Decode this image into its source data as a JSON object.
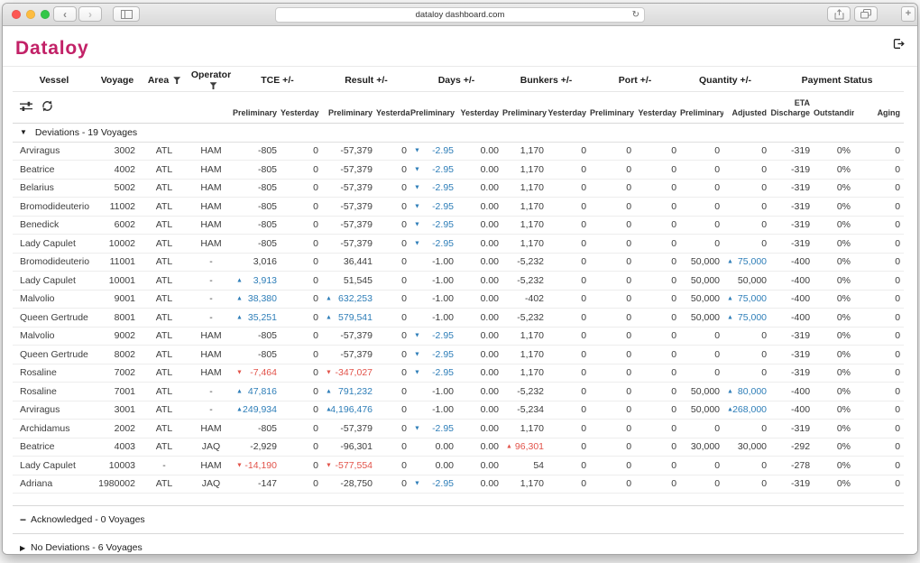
{
  "browser": {
    "url": "dataloy dashboard.com"
  },
  "app": {
    "logo": "Dataloy"
  },
  "colors": {
    "accent": "#c22167",
    "positive": "#2e7eb8",
    "negative": "#e2534a"
  },
  "table": {
    "groups": [
      {
        "label": "Vessel"
      },
      {
        "label": "Voyage"
      },
      {
        "label": "Area",
        "filter": true
      },
      {
        "label": "Operator",
        "filter": true
      },
      {
        "label": "TCE +/-"
      },
      {
        "label": "Result +/-"
      },
      {
        "label": "Days +/-"
      },
      {
        "label": "Bunkers +/-"
      },
      {
        "label": "Port +/-"
      },
      {
        "label": "Quantity +/-"
      },
      {
        "label": "Payment Status"
      }
    ],
    "subheaders": [
      "Preliminary",
      "Yesterday",
      "Preliminary",
      "Yesterday",
      "Preliminary",
      "Yesterday",
      "Preliminary",
      "Yesterday",
      "Preliminary",
      "Yesterday",
      "Preliminary",
      "Adjusted",
      "ETA Discharge",
      "Outstanding",
      "Aging"
    ],
    "sections": [
      {
        "icon": "▼",
        "label": "Deviations - 19 Voyages"
      },
      {
        "icon": "−",
        "label": "Acknowledged - 0 Voyages"
      },
      {
        "icon": "▶",
        "label": "No Deviations - 6 Voyages"
      }
    ],
    "rows": [
      [
        "Arviragus",
        "3002",
        "ATL",
        "HAM",
        "-805",
        "0",
        "-57,379",
        "0",
        {
          "v": "-2.95",
          "c": "blue",
          "i": "down"
        },
        "0.00",
        "1,170",
        "0",
        "0",
        "0",
        "0",
        "0",
        "-319",
        "0%",
        "0"
      ],
      [
        "Beatrice",
        "4002",
        "ATL",
        "HAM",
        "-805",
        "0",
        "-57,379",
        "0",
        {
          "v": "-2.95",
          "c": "blue",
          "i": "down"
        },
        "0.00",
        "1,170",
        "0",
        "0",
        "0",
        "0",
        "0",
        "-319",
        "0%",
        "0"
      ],
      [
        "Belarius",
        "5002",
        "ATL",
        "HAM",
        "-805",
        "0",
        "-57,379",
        "0",
        {
          "v": "-2.95",
          "c": "blue",
          "i": "down"
        },
        "0.00",
        "1,170",
        "0",
        "0",
        "0",
        "0",
        "0",
        "-319",
        "0%",
        "0"
      ],
      [
        "Bromodideuterio",
        "11002",
        "ATL",
        "HAM",
        "-805",
        "0",
        "-57,379",
        "0",
        {
          "v": "-2.95",
          "c": "blue",
          "i": "down"
        },
        "0.00",
        "1,170",
        "0",
        "0",
        "0",
        "0",
        "0",
        "-319",
        "0%",
        "0"
      ],
      [
        "Benedick",
        "6002",
        "ATL",
        "HAM",
        "-805",
        "0",
        "-57,379",
        "0",
        {
          "v": "-2.95",
          "c": "blue",
          "i": "down"
        },
        "0.00",
        "1,170",
        "0",
        "0",
        "0",
        "0",
        "0",
        "-319",
        "0%",
        "0"
      ],
      [
        "Lady Capulet",
        "10002",
        "ATL",
        "HAM",
        "-805",
        "0",
        "-57,379",
        "0",
        {
          "v": "-2.95",
          "c": "blue",
          "i": "down"
        },
        "0.00",
        "1,170",
        "0",
        "0",
        "0",
        "0",
        "0",
        "-319",
        "0%",
        "0"
      ],
      [
        "Bromodideuterio",
        "11001",
        "ATL",
        "-",
        "3,016",
        "0",
        "36,441",
        "0",
        "-1.00",
        "0.00",
        "-5,232",
        "0",
        "0",
        "0",
        "50,000",
        {
          "v": "75,000",
          "c": "blue",
          "i": "up"
        },
        "-400",
        "0%",
        "0"
      ],
      [
        "Lady Capulet",
        "10001",
        "ATL",
        "-",
        {
          "v": "3,913",
          "c": "blue",
          "i": "up"
        },
        "0",
        "51,545",
        "0",
        "-1.00",
        "0.00",
        "-5,232",
        "0",
        "0",
        "0",
        "50,000",
        "50,000",
        "-400",
        "0%",
        "0"
      ],
      [
        "Malvolio",
        "9001",
        "ATL",
        "-",
        {
          "v": "38,380",
          "c": "blue",
          "i": "up"
        },
        "0",
        {
          "v": "632,253",
          "c": "blue",
          "i": "up"
        },
        "0",
        "-1.00",
        "0.00",
        "-402",
        "0",
        "0",
        "0",
        "50,000",
        {
          "v": "75,000",
          "c": "blue",
          "i": "up"
        },
        "-400",
        "0%",
        "0"
      ],
      [
        "Queen Gertrude",
        "8001",
        "ATL",
        "-",
        {
          "v": "35,251",
          "c": "blue",
          "i": "up"
        },
        "0",
        {
          "v": "579,541",
          "c": "blue",
          "i": "up"
        },
        "0",
        "-1.00",
        "0.00",
        "-5,232",
        "0",
        "0",
        "0",
        "50,000",
        {
          "v": "75,000",
          "c": "blue",
          "i": "up"
        },
        "-400",
        "0%",
        "0"
      ],
      [
        "Malvolio",
        "9002",
        "ATL",
        "HAM",
        "-805",
        "0",
        "-57,379",
        "0",
        {
          "v": "-2.95",
          "c": "blue",
          "i": "down"
        },
        "0.00",
        "1,170",
        "0",
        "0",
        "0",
        "0",
        "0",
        "-319",
        "0%",
        "0"
      ],
      [
        "Queen Gertrude",
        "8002",
        "ATL",
        "HAM",
        "-805",
        "0",
        "-57,379",
        "0",
        {
          "v": "-2.95",
          "c": "blue",
          "i": "down"
        },
        "0.00",
        "1,170",
        "0",
        "0",
        "0",
        "0",
        "0",
        "-319",
        "0%",
        "0"
      ],
      [
        "Rosaline",
        "7002",
        "ATL",
        "HAM",
        {
          "v": "-7,464",
          "c": "red",
          "i": "down"
        },
        "0",
        {
          "v": "-347,027",
          "c": "red",
          "i": "down"
        },
        "0",
        {
          "v": "-2.95",
          "c": "blue",
          "i": "down"
        },
        "0.00",
        "1,170",
        "0",
        "0",
        "0",
        "0",
        "0",
        "-319",
        "0%",
        "0"
      ],
      [
        "Rosaline",
        "7001",
        "ATL",
        "-",
        {
          "v": "47,816",
          "c": "blue",
          "i": "up"
        },
        "0",
        {
          "v": "791,232",
          "c": "blue",
          "i": "up"
        },
        "0",
        "-1.00",
        "0.00",
        "-5,232",
        "0",
        "0",
        "0",
        "50,000",
        {
          "v": "80,000",
          "c": "blue",
          "i": "up"
        },
        "-400",
        "0%",
        "0"
      ],
      [
        "Arviragus",
        "3001",
        "ATL",
        "-",
        {
          "v": "249,934",
          "c": "blue",
          "i": "up"
        },
        "0",
        {
          "v": "4,196,476",
          "c": "blue",
          "i": "up"
        },
        "0",
        "-1.00",
        "0.00",
        "-5,234",
        "0",
        "0",
        "0",
        "50,000",
        {
          "v": "268,000",
          "c": "blue",
          "i": "up"
        },
        "-400",
        "0%",
        "0"
      ],
      [
        "Archidamus",
        "2002",
        "ATL",
        "HAM",
        "-805",
        "0",
        "-57,379",
        "0",
        {
          "v": "-2.95",
          "c": "blue",
          "i": "down"
        },
        "0.00",
        "1,170",
        "0",
        "0",
        "0",
        "0",
        "0",
        "-319",
        "0%",
        "0"
      ],
      [
        "Beatrice",
        "4003",
        "ATL",
        "JAQ",
        "-2,929",
        "0",
        "-96,301",
        "0",
        "0.00",
        "0.00",
        {
          "v": "96,301",
          "c": "red",
          "i": "up"
        },
        "0",
        "0",
        "0",
        "30,000",
        "30,000",
        "-292",
        "0%",
        "0"
      ],
      [
        "Lady Capulet",
        "10003",
        "-",
        "HAM",
        {
          "v": "-14,190",
          "c": "red",
          "i": "down"
        },
        "0",
        {
          "v": "-577,554",
          "c": "red",
          "i": "down"
        },
        "0",
        "0.00",
        "0.00",
        "54",
        "0",
        "0",
        "0",
        "0",
        "0",
        "-278",
        "0%",
        "0"
      ],
      [
        "Adriana",
        "1980002",
        "ATL",
        "JAQ",
        "-147",
        "0",
        "-28,750",
        "0",
        {
          "v": "-2.95",
          "c": "blue",
          "i": "down"
        },
        "0.00",
        "1,170",
        "0",
        "0",
        "0",
        "0",
        "0",
        "-319",
        "0%",
        "0"
      ]
    ]
  }
}
